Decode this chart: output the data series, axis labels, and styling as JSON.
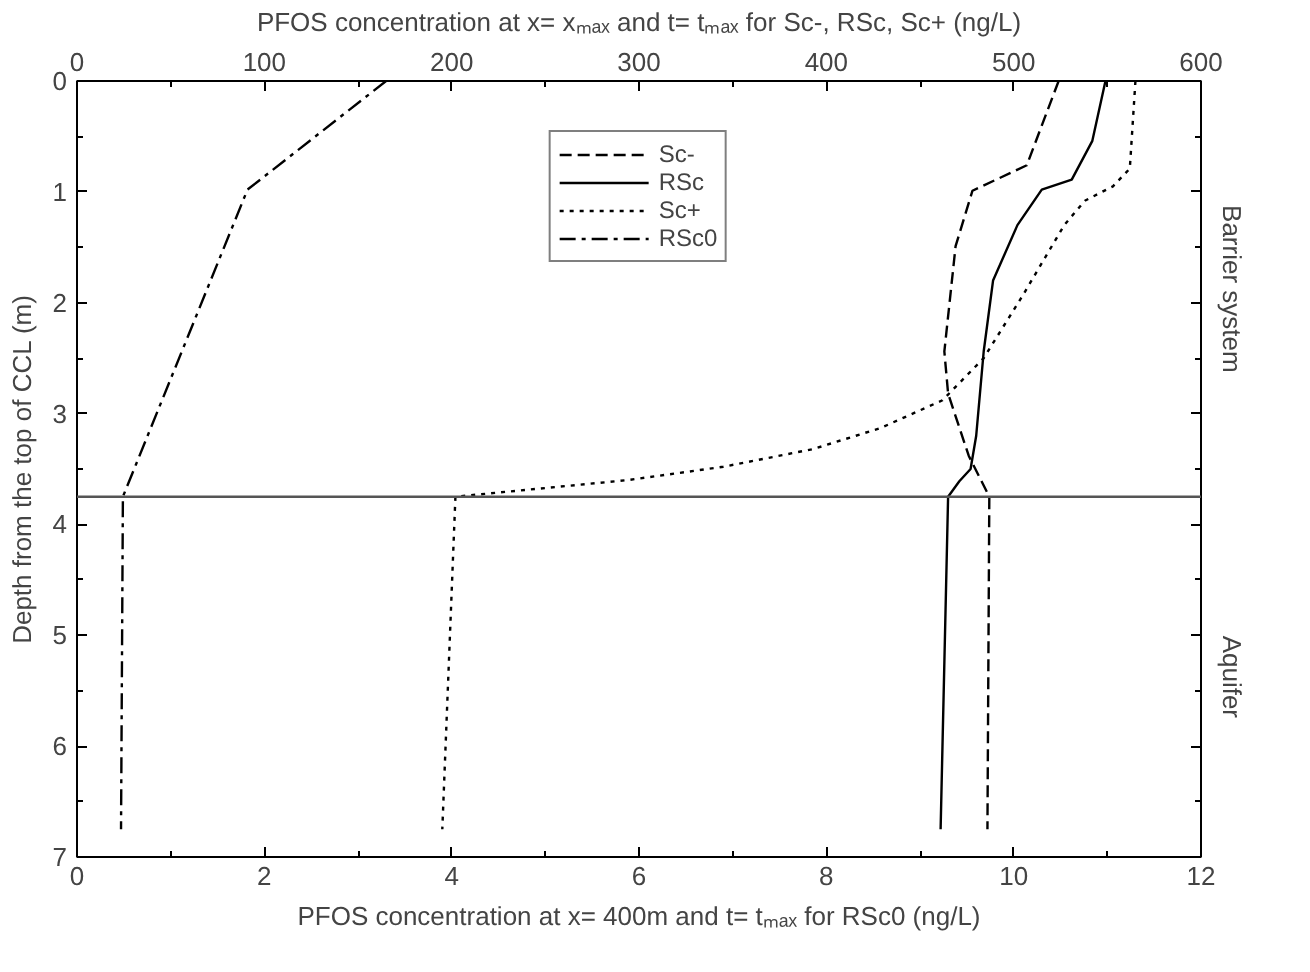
{
  "chart_data": {
    "type": "line",
    "xlabel": "PFOS concentration at x= 400m and t= tₘₐₓ for RSc0 (ng/L)",
    "x2label": "PFOS concentration at x= xₘₐₓ and t= tₘₐₓ for Sc-, RSc, Sc+ (ng/L)",
    "ylabel": "Depth from the top of CCL (m)",
    "xlim": [
      0,
      12
    ],
    "xticks": [
      0,
      2,
      4,
      6,
      8,
      10,
      12
    ],
    "x2lim": [
      0,
      600
    ],
    "x2ticks": [
      0,
      100,
      200,
      300,
      400,
      500,
      600
    ],
    "ylim": [
      7,
      0
    ],
    "yticks": [
      0,
      1,
      2,
      3,
      4,
      5,
      6,
      7
    ],
    "grid": false,
    "legend": "top",
    "marker": "none",
    "series": [
      {
        "name": "Sc-",
        "color": "#000000",
        "axis": "x2",
        "line_style": "dashed",
        "x": [
          524,
          507,
          478,
          469,
          463,
          465,
          476,
          487,
          486
        ],
        "values": [
          0,
          0.76,
          0.99,
          1.49,
          2.44,
          2.82,
          3.38,
          3.75,
          6.75
        ]
      },
      {
        "name": "RSc",
        "color": "#000000",
        "axis": "x2",
        "line_style": "solid",
        "x": [
          549,
          542,
          531,
          515,
          502,
          489,
          484,
          480,
          477,
          471,
          465,
          461
        ],
        "values": [
          0,
          0.54,
          0.89,
          0.98,
          1.3,
          1.8,
          2.44,
          3.2,
          3.5,
          3.61,
          3.75,
          6.75
        ]
      },
      {
        "name": "Sc+",
        "color": "#000000",
        "axis": "x2",
        "line_style": "dotted",
        "x": [
          565,
          562,
          553,
          538,
          527,
          505,
          484,
          462,
          429,
          393,
          345,
          294,
          202,
          195
        ],
        "values": [
          0,
          0.79,
          0.95,
          1.08,
          1.3,
          1.93,
          2.5,
          2.88,
          3.13,
          3.32,
          3.48,
          3.6,
          3.75,
          6.75
        ]
      },
      {
        "name": "RSc0",
        "color": "#000000",
        "line_style": "dashdot",
        "x": [
          3.3,
          1.82,
          0.49,
          0.47
        ],
        "values": [
          0,
          0.98,
          3.75,
          6.75
        ]
      }
    ],
    "ref_lines": [
      {
        "axis": "y",
        "value": 3.75,
        "color": "#555555"
      }
    ],
    "annotations": [
      "Barrier system",
      "Aquifer"
    ]
  }
}
